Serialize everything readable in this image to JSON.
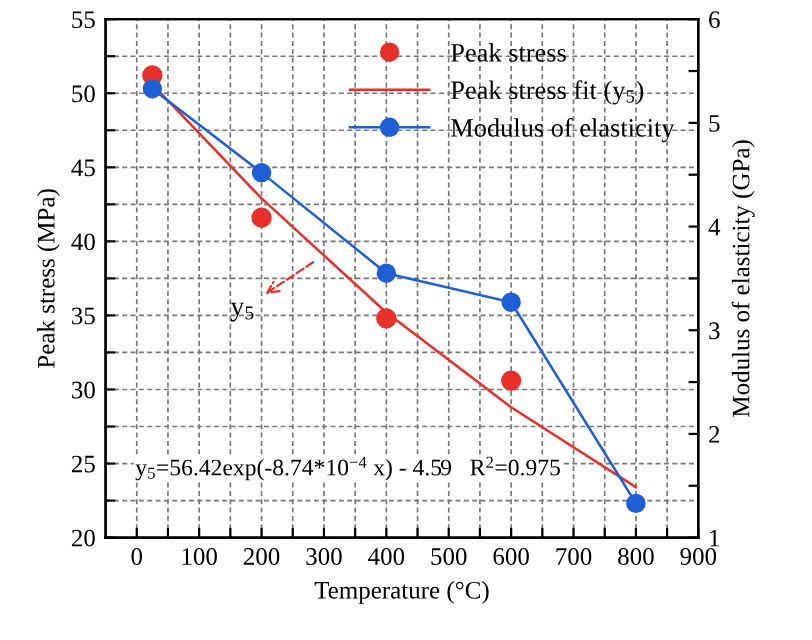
{
  "chart_data": {
    "type": "line",
    "xlabel": "Temperature (°C)",
    "ylabel": "Peak stress (MPa)",
    "y2label": "Modulus of elasticity (GPa)",
    "x": [
      25,
      200,
      400,
      600,
      800
    ],
    "series": [
      {
        "name": "Peak stress",
        "type": "scatter",
        "color": "#e8302a",
        "values": [
          51.2,
          41.6,
          34.8,
          30.6,
          null
        ],
        "marker": "circle"
      },
      {
        "name": "Peak stress fit (y$_{5}$)",
        "color": "#e8302a",
        "values": [
          50.6,
          42.9,
          35.2,
          28.8,
          23.4
        ],
        "marker": "none"
      },
      {
        "name": "Modulus of elasticity",
        "color": "#1f5fd6",
        "values": [
          5.33,
          4.52,
          3.55,
          3.27,
          1.33
        ],
        "marker": "circle",
        "axis": "y2"
      }
    ],
    "xlim": [
      -50,
      900
    ],
    "xticks": [
      0,
      {
        "value": 50,
        "label": null
      },
      100,
      {
        "value": 150,
        "label": null
      },
      200,
      {
        "value": 250,
        "label": null
      },
      300,
      {
        "value": 350,
        "label": null
      },
      400,
      {
        "value": 450,
        "label": null
      },
      500,
      {
        "value": 550,
        "label": null
      },
      600,
      {
        "value": 650,
        "label": null
      },
      700,
      {
        "value": 750,
        "label": null
      },
      800,
      {
        "value": 850,
        "label": null
      },
      900
    ],
    "ylim": [
      20,
      55
    ],
    "yticks": [
      20,
      {
        "value": 22.5,
        "label": null
      },
      25,
      {
        "value": 27.5,
        "label": null
      },
      30,
      {
        "value": 32.5,
        "label": null
      },
      35,
      {
        "value": 37.5,
        "label": null
      },
      40,
      {
        "value": 42.5,
        "label": null
      },
      45,
      {
        "value": 47.5,
        "label": null
      },
      50,
      {
        "value": 52.5,
        "label": null
      },
      55
    ],
    "y2lim": [
      1,
      6
    ],
    "y2ticks": [
      1,
      {
        "value": 1.5,
        "label": null
      },
      2,
      {
        "value": 2.5,
        "label": null
      },
      3,
      {
        "value": 3.5,
        "label": null
      },
      4,
      {
        "value": 4.5,
        "label": null
      },
      5,
      {
        "value": 5.5,
        "label": null
      },
      6
    ],
    "annotations": [
      {
        "text": "y$_{5}$",
        "x": 290,
        "y": 38.8
      },
      "y$_{5}$=56.42exp(-8.74*10$^{−4}$ x) - 4.59   R$^{2}$=0.975"
    ],
    "grid": true,
    "legend": "top right"
  }
}
